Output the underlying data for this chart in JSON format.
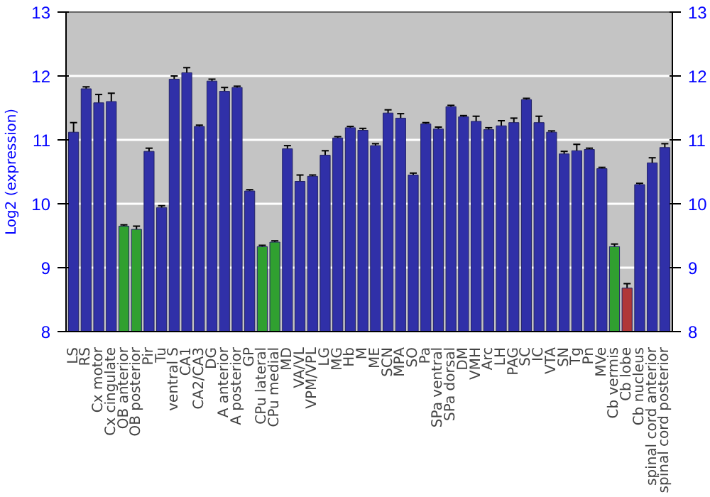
{
  "chart_data": {
    "type": "bar",
    "ylabel": "Log2 (expression)",
    "categories": [
      "LS",
      "RS",
      "Cx motor",
      "Cx cingulate",
      "OB anterior",
      "OB posterior",
      "Pir",
      "Tu",
      "ventral S",
      "CA1",
      "CA2/CA3",
      "DG",
      "A anterior",
      "A posterior",
      "GP",
      "CPu lateral",
      "CPu medial",
      "MD",
      "VA/VL",
      "VPM/VPL",
      "LG",
      "MG",
      "Hb",
      "M",
      "ME",
      "SCN",
      "MPA",
      "SO",
      "Pa",
      "SPa ventral",
      "SPa dorsal",
      "DM",
      "VMH",
      "Arc",
      "LH",
      "PAG",
      "SC",
      "IC",
      "VTA",
      "SN",
      "Tg",
      "Pn",
      "MVe",
      "Cb vermis",
      "Cb lobe",
      "Cb nucleus",
      "spinal cord anterior",
      "spinal cord posterior"
    ],
    "values": [
      11.12,
      11.8,
      11.58,
      11.6,
      9.65,
      9.6,
      10.82,
      9.94,
      11.95,
      12.05,
      11.21,
      11.92,
      11.76,
      11.82,
      10.2,
      9.33,
      9.4,
      10.86,
      10.35,
      10.43,
      10.76,
      11.03,
      11.19,
      11.15,
      10.91,
      11.42,
      11.34,
      10.45,
      11.25,
      11.17,
      11.52,
      11.36,
      11.29,
      11.16,
      11.22,
      11.27,
      11.63,
      11.27,
      11.12,
      10.78,
      10.83,
      10.85,
      10.55,
      9.33,
      8.68,
      10.3,
      10.64,
      10.88
    ],
    "errors": [
      0.15,
      0.03,
      0.13,
      0.13,
      0.02,
      0.05,
      0.05,
      0.03,
      0.05,
      0.08,
      0.02,
      0.03,
      0.06,
      0.02,
      0.02,
      0.02,
      0.02,
      0.05,
      0.1,
      0.02,
      0.07,
      0.02,
      0.02,
      0.03,
      0.03,
      0.05,
      0.07,
      0.03,
      0.02,
      0.03,
      0.02,
      0.02,
      0.08,
      0.03,
      0.08,
      0.07,
      0.02,
      0.1,
      0.02,
      0.04,
      0.1,
      0.02,
      0.02,
      0.04,
      0.07,
      0.02,
      0.08,
      0.06
    ],
    "colors": [
      "#3030a8",
      "#3030a8",
      "#3030a8",
      "#3030a8",
      "#30a030",
      "#30a030",
      "#3030a8",
      "#3030a8",
      "#3030a8",
      "#3030a8",
      "#3030a8",
      "#3030a8",
      "#3030a8",
      "#3030a8",
      "#3030a8",
      "#30a030",
      "#30a030",
      "#3030a8",
      "#3030a8",
      "#3030a8",
      "#3030a8",
      "#3030a8",
      "#3030a8",
      "#3030a8",
      "#3030a8",
      "#3030a8",
      "#3030a8",
      "#3030a8",
      "#3030a8",
      "#3030a8",
      "#3030a8",
      "#3030a8",
      "#3030a8",
      "#3030a8",
      "#3030a8",
      "#3030a8",
      "#3030a8",
      "#3030a8",
      "#3030a8",
      "#3030a8",
      "#3030a8",
      "#3030a8",
      "#3030a8",
      "#30a030",
      "#b03838",
      "#3030a8",
      "#3030a8",
      "#3030a8"
    ],
    "ylim": [
      8,
      13
    ],
    "yticks": [
      8,
      9,
      10,
      11,
      12,
      13
    ],
    "y2lim": [
      8,
      13
    ],
    "y2ticks": [
      8,
      9,
      10,
      11,
      12,
      13
    ],
    "grid": "y"
  }
}
